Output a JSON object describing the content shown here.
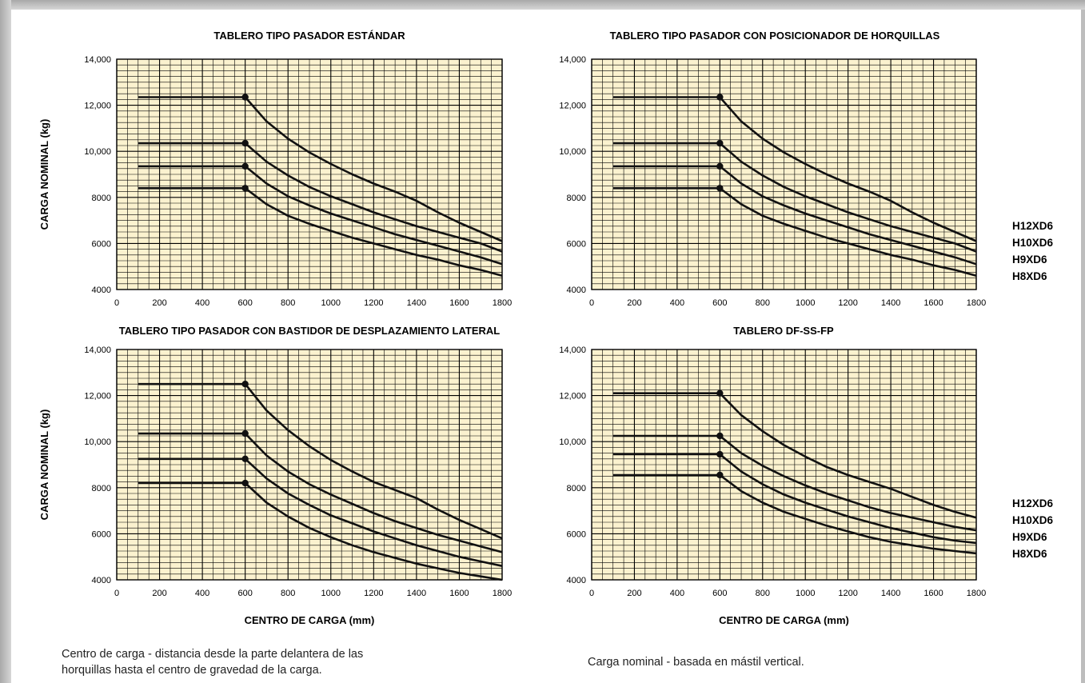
{
  "chart_data": [
    {
      "type": "line",
      "title": "TABLERO TIPO PASADOR ESTÁNDAR",
      "ylabel": "CARGA NOMINAL (kg)",
      "xlabel": "",
      "xlim": [
        0,
        1800
      ],
      "ylim": [
        4000,
        14000
      ],
      "x_ticks": [
        "0",
        "200",
        "400",
        "600",
        "800",
        "1000",
        "1200",
        "1400",
        "1600",
        "1800"
      ],
      "y_ticks": [
        "4000",
        "6000",
        "8000",
        "10,000",
        "12,000",
        "14,000"
      ],
      "grid": true,
      "series": [
        {
          "x": [
            100,
            600,
            700,
            800,
            900,
            1000,
            1100,
            1200,
            1300,
            1400,
            1500,
            1600,
            1700,
            1800
          ],
          "y": [
            12350,
            12350,
            11300,
            10550,
            9950,
            9450,
            9000,
            8600,
            8250,
            7850,
            7350,
            6900,
            6500,
            6100
          ]
        },
        {
          "x": [
            100,
            600,
            700,
            800,
            900,
            1000,
            1100,
            1200,
            1300,
            1400,
            1500,
            1600,
            1700,
            1800
          ],
          "y": [
            10350,
            10350,
            9550,
            8950,
            8450,
            8050,
            7700,
            7350,
            7050,
            6750,
            6500,
            6250,
            6000,
            5650
          ]
        },
        {
          "x": [
            100,
            600,
            700,
            800,
            900,
            1000,
            1100,
            1200,
            1300,
            1400,
            1500,
            1600,
            1700,
            1800
          ],
          "y": [
            9350,
            9350,
            8600,
            8050,
            7650,
            7300,
            7000,
            6700,
            6400,
            6150,
            5900,
            5650,
            5400,
            5100
          ]
        },
        {
          "x": [
            100,
            600,
            700,
            800,
            900,
            1000,
            1100,
            1200,
            1300,
            1400,
            1500,
            1600,
            1700,
            1800
          ],
          "y": [
            8400,
            8400,
            7700,
            7200,
            6850,
            6550,
            6250,
            6000,
            5750,
            5500,
            5300,
            5050,
            4850,
            4600
          ]
        }
      ]
    },
    {
      "type": "line",
      "title": "TABLERO TIPO PASADOR CON POSICIONADOR DE HORQUILLAS",
      "ylabel": "",
      "xlabel": "",
      "xlim": [
        0,
        1800
      ],
      "ylim": [
        4000,
        14000
      ],
      "x_ticks": [
        "0",
        "200",
        "400",
        "600",
        "800",
        "1000",
        "1200",
        "1400",
        "1600",
        "1800"
      ],
      "y_ticks": [
        "4000",
        "6000",
        "8000",
        "10,000",
        "12,000",
        "14,000"
      ],
      "grid": true,
      "series": [
        {
          "x": [
            100,
            600,
            700,
            800,
            900,
            1000,
            1100,
            1200,
            1300,
            1400,
            1500,
            1600,
            1700,
            1800
          ],
          "y": [
            12350,
            12350,
            11300,
            10550,
            9950,
            9450,
            9000,
            8600,
            8250,
            7850,
            7350,
            6900,
            6500,
            6100
          ]
        },
        {
          "x": [
            100,
            600,
            700,
            800,
            900,
            1000,
            1100,
            1200,
            1300,
            1400,
            1500,
            1600,
            1700,
            1800
          ],
          "y": [
            10350,
            10350,
            9550,
            8950,
            8450,
            8050,
            7700,
            7350,
            7050,
            6750,
            6500,
            6250,
            6000,
            5650
          ]
        },
        {
          "x": [
            100,
            600,
            700,
            800,
            900,
            1000,
            1100,
            1200,
            1300,
            1400,
            1500,
            1600,
            1700,
            1800
          ],
          "y": [
            9350,
            9350,
            8600,
            8050,
            7650,
            7300,
            7000,
            6700,
            6400,
            6150,
            5900,
            5650,
            5400,
            5100
          ]
        },
        {
          "x": [
            100,
            600,
            700,
            800,
            900,
            1000,
            1100,
            1200,
            1300,
            1400,
            1500,
            1600,
            1700,
            1800
          ],
          "y": [
            8400,
            8400,
            7700,
            7200,
            6850,
            6550,
            6250,
            6000,
            5750,
            5500,
            5300,
            5050,
            4850,
            4600
          ]
        }
      ],
      "legend": [
        "H12XD6",
        "H10XD6",
        "H9XD6",
        "H8XD6"
      ]
    },
    {
      "type": "line",
      "title": "TABLERO TIPO PASADOR CON BASTIDOR DE DESPLAZAMIENTO LATERAL",
      "ylabel": "CARGA NOMINAL (kg)",
      "xlabel": "CENTRO DE CARGA (mm)",
      "xlim": [
        0,
        1800
      ],
      "ylim": [
        4000,
        14000
      ],
      "x_ticks": [
        "0",
        "200",
        "400",
        "600",
        "800",
        "1000",
        "1200",
        "1400",
        "1600",
        "1800"
      ],
      "y_ticks": [
        "4000",
        "6000",
        "8000",
        "10,000",
        "12,000",
        "14,000"
      ],
      "grid": true,
      "series": [
        {
          "x": [
            100,
            600,
            700,
            800,
            900,
            1000,
            1100,
            1200,
            1300,
            1400,
            1500,
            1600,
            1700,
            1800
          ],
          "y": [
            12500,
            12500,
            11350,
            10500,
            9800,
            9200,
            8700,
            8250,
            7900,
            7550,
            7050,
            6600,
            6200,
            5800
          ]
        },
        {
          "x": [
            100,
            600,
            700,
            800,
            900,
            1000,
            1100,
            1200,
            1300,
            1400,
            1500,
            1600,
            1700,
            1800
          ],
          "y": [
            10350,
            10350,
            9400,
            8700,
            8150,
            7700,
            7300,
            6900,
            6550,
            6250,
            5950,
            5700,
            5450,
            5200
          ]
        },
        {
          "x": [
            100,
            600,
            700,
            800,
            900,
            1000,
            1100,
            1200,
            1300,
            1400,
            1500,
            1600,
            1700,
            1800
          ],
          "y": [
            9250,
            9250,
            8400,
            7750,
            7250,
            6800,
            6450,
            6100,
            5800,
            5500,
            5250,
            5000,
            4800,
            4600
          ]
        },
        {
          "x": [
            100,
            600,
            700,
            800,
            900,
            1000,
            1100,
            1200,
            1300,
            1400,
            1500,
            1600,
            1700,
            1800
          ],
          "y": [
            8200,
            8200,
            7350,
            6750,
            6250,
            5850,
            5500,
            5200,
            4950,
            4700,
            4500,
            4300,
            4150,
            4000
          ]
        }
      ]
    },
    {
      "type": "line",
      "title": "TABLERO DF-SS-FP",
      "ylabel": "",
      "xlabel": "CENTRO DE CARGA (mm)",
      "xlim": [
        0,
        1800
      ],
      "ylim": [
        4000,
        14000
      ],
      "x_ticks": [
        "0",
        "200",
        "400",
        "600",
        "800",
        "1000",
        "1200",
        "1400",
        "1600",
        "1800"
      ],
      "y_ticks": [
        "4000",
        "6000",
        "8000",
        "10,000",
        "12,000",
        "14,000"
      ],
      "grid": true,
      "series": [
        {
          "x": [
            100,
            600,
            700,
            800,
            900,
            1000,
            1100,
            1200,
            1300,
            1400,
            1500,
            1600,
            1700,
            1800
          ],
          "y": [
            12100,
            12100,
            11150,
            10450,
            9850,
            9350,
            8900,
            8550,
            8250,
            7950,
            7600,
            7250,
            6950,
            6700
          ]
        },
        {
          "x": [
            100,
            600,
            700,
            800,
            900,
            1000,
            1100,
            1200,
            1300,
            1400,
            1500,
            1600,
            1700,
            1800
          ],
          "y": [
            10250,
            10250,
            9500,
            8950,
            8500,
            8100,
            7750,
            7450,
            7150,
            6900,
            6700,
            6500,
            6300,
            6150
          ]
        },
        {
          "x": [
            100,
            600,
            700,
            800,
            900,
            1000,
            1100,
            1200,
            1300,
            1400,
            1500,
            1600,
            1700,
            1800
          ],
          "y": [
            9450,
            9450,
            8700,
            8150,
            7700,
            7350,
            7050,
            6750,
            6500,
            6250,
            6050,
            5850,
            5700,
            5600
          ]
        },
        {
          "x": [
            100,
            600,
            700,
            800,
            900,
            1000,
            1100,
            1200,
            1300,
            1400,
            1500,
            1600,
            1700,
            1800
          ],
          "y": [
            8550,
            8550,
            7850,
            7350,
            6950,
            6650,
            6350,
            6100,
            5850,
            5650,
            5500,
            5350,
            5250,
            5150
          ]
        }
      ],
      "legend": [
        "H12XD6",
        "H10XD6",
        "H9XD6",
        "H8XD6"
      ]
    }
  ],
  "notes": {
    "left_line1": "Centro de carga - distancia desde la parte delantera de las",
    "left_line2": "horquillas hasta el centro de gravedad de la carga.",
    "right": "Carga nominal - basada en mástil vertical."
  },
  "colors": {
    "plot_background": "#fbf2cf",
    "grid_line": "#000000",
    "curve": "#111111"
  }
}
